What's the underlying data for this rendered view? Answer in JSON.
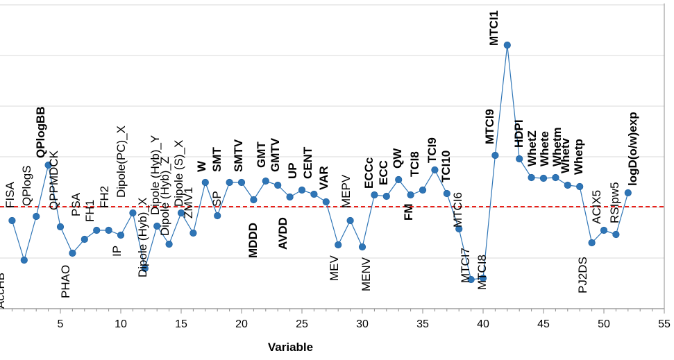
{
  "chart_data": {
    "type": "line",
    "xlabel": "Variable",
    "ylabel": "",
    "xlim": [
      0,
      55
    ],
    "x_ticks": [
      5,
      10,
      15,
      20,
      25,
      30,
      35,
      40,
      45,
      50,
      55
    ],
    "ylim": [
      0,
      7
    ],
    "grid": "horizontal",
    "threshold": {
      "value": 2.0,
      "color": "#e8201a",
      "style": "dashed"
    },
    "colors": {
      "line": "#2e75b6",
      "marker": "#2e75b6",
      "axis": "#8c8c8c",
      "grid": "#d9d9d9"
    },
    "series": [
      {
        "points": [
          {
            "x": 1,
            "y": 1.8,
            "label": "AccHB",
            "bold": false,
            "above": false
          },
          {
            "x": 2,
            "y": 1.0,
            "label": "",
            "bold": false,
            "above": false
          },
          {
            "x": 3,
            "y": 1.85,
            "label": "PHAO",
            "bold": false,
            "above": false
          },
          {
            "x": 4,
            "y": 2.6,
            "label": "QPlogBB",
            "bold": true,
            "above": true
          },
          {
            "x": 5,
            "y": 1.7,
            "label": "QPPMDCK",
            "bold": false,
            "above": true
          },
          {
            "x": 6,
            "y": 1.15,
            "label": "PSA",
            "bold": false,
            "above": true
          },
          {
            "x": 7,
            "y": 1.4,
            "label": "FH1",
            "bold": false,
            "above": true
          },
          {
            "x": 8,
            "y": 1.55,
            "label": "FH2",
            "bold": false,
            "above": true
          },
          {
            "x": 9,
            "y": 1.55,
            "label": "IP",
            "bold": false,
            "above": false
          },
          {
            "x": 10,
            "y": 1.48,
            "label": "Dipole(PC)_X",
            "bold": false,
            "above": true
          },
          {
            "x": 11,
            "y": 1.9,
            "label": "Dipole (Hyb)_X",
            "bold": false,
            "above": false
          },
          {
            "x": 12,
            "y": 0.85,
            "label": "Dipole (Hyb)_Y",
            "bold": false,
            "above": true
          },
          {
            "x": 13,
            "y": 1.62,
            "label": "Dipole (Hyb)_Z",
            "bold": false,
            "above": true
          },
          {
            "x": 14,
            "y": 1.25,
            "label": "Dipole (S)_X",
            "bold": false,
            "above": true
          },
          {
            "x": 15,
            "y": 1.9,
            "label": "ZMV1",
            "bold": false,
            "above": true
          },
          {
            "x": 16,
            "y": 1.5,
            "label": "W",
            "bold": true,
            "above": true
          },
          {
            "x": 17,
            "y": 2.5,
            "label": "SP",
            "bold": false,
            "above": true
          },
          {
            "x": 18,
            "y": 1.85,
            "label": "SMT",
            "bold": true,
            "above": true
          },
          {
            "x": 19,
            "y": 2.5,
            "label": "SMTV",
            "bold": true,
            "above": true
          },
          {
            "x": 20,
            "y": 2.5,
            "label": "MDDD",
            "bold": true,
            "above": false
          },
          {
            "x": 21,
            "y": 2.15,
            "label": "GMT",
            "bold": true,
            "above": true
          },
          {
            "x": 22,
            "y": 2.5,
            "label": "GMTV",
            "bold": true,
            "above": true
          },
          {
            "x": 23,
            "y": 2.45,
            "label": "AVDD",
            "bold": true,
            "above": false
          },
          {
            "x": 24,
            "y": 2.2,
            "label": "UP",
            "bold": true,
            "above": true
          },
          {
            "x": 25,
            "y": 2.3,
            "label": "CENT",
            "bold": true,
            "above": true
          },
          {
            "x": 26,
            "y": 2.25,
            "label": "VAR",
            "bold": true,
            "above": true
          },
          {
            "x": 27,
            "y": 2.1,
            "label": "MEV",
            "bold": false,
            "above": false
          },
          {
            "x": 28,
            "y": 1.25,
            "label": "MEPV",
            "bold": false,
            "above": true
          },
          {
            "x": 29,
            "y": 1.8,
            "label": "MENV",
            "bold": false,
            "above": false
          },
          {
            "x": 30,
            "y": 1.25,
            "label": "ECCc",
            "bold": true,
            "above": true
          },
          {
            "x": 31,
            "y": 2.2,
            "label": "ECC",
            "bold": true,
            "above": true
          },
          {
            "x": 32,
            "y": 2.2,
            "label": "QW",
            "bold": true,
            "above": true
          },
          {
            "x": 33,
            "y": 2.6,
            "label": "FM",
            "bold": true,
            "above": false
          },
          {
            "x": 34,
            "y": 2.25,
            "label": "TCI8",
            "bold": true,
            "above": true
          },
          {
            "x": 35,
            "y": 2.45,
            "label": "TCI9",
            "bold": true,
            "above": true
          },
          {
            "x": 36,
            "y": 2.75,
            "label": "TCI10",
            "bold": true,
            "above": true
          },
          {
            "x": 37,
            "y": 2.3,
            "label": "MTCI6",
            "bold": false,
            "above": true
          },
          {
            "x": 38,
            "y": 1.6,
            "label": "MTCI7",
            "bold": false,
            "above": false
          },
          {
            "x": 39,
            "y": 0.6,
            "label": "",
            "bold": false,
            "above": false
          },
          {
            "x": 40,
            "y": 0.62,
            "label": "MTCI8",
            "bold": false,
            "above": false
          },
          {
            "x": 41,
            "y": 3.4,
            "label": "MTCI9",
            "bold": true,
            "above": true
          },
          {
            "x": 42,
            "y": 5.05,
            "label": "MTCI1",
            "bold": true,
            "above": true
          },
          {
            "x": 43,
            "y": 3.35,
            "label": "HDPI",
            "bold": true,
            "above": true
          },
          {
            "x": 44,
            "y": 2.95,
            "label": "WhetZ",
            "bold": true,
            "above": true
          },
          {
            "x": 45,
            "y": 2.95,
            "label": "Whete",
            "bold": true,
            "above": true
          },
          {
            "x": 46,
            "y": 2.95,
            "label": "Whetm",
            "bold": true,
            "above": true
          },
          {
            "x": 47,
            "y": 2.8,
            "label": "Whetv",
            "bold": true,
            "above": true
          },
          {
            "x": 48,
            "y": 2.8,
            "label": "Whetp",
            "bold": true,
            "above": true
          },
          {
            "x": 49,
            "y": 1.35,
            "label": "PJ2DS",
            "bold": false,
            "above": false
          },
          {
            "x": 50,
            "y": 1.6,
            "label": "ACIX5",
            "bold": false,
            "above": true
          },
          {
            "x": 51,
            "y": 1.5,
            "label": "RSIpw5",
            "bold": false,
            "above": true
          },
          {
            "x": 52,
            "y": 2.35,
            "label": "logD(o/w)exp",
            "bold": true,
            "above": true
          }
        ]
      }
    ],
    "extra_labels": [
      {
        "text": "FISA",
        "x": 1,
        "y": 2.0,
        "bold": false
      },
      {
        "text": "QPlogS",
        "x": 2,
        "y": 2.0,
        "bold": false
      }
    ]
  }
}
